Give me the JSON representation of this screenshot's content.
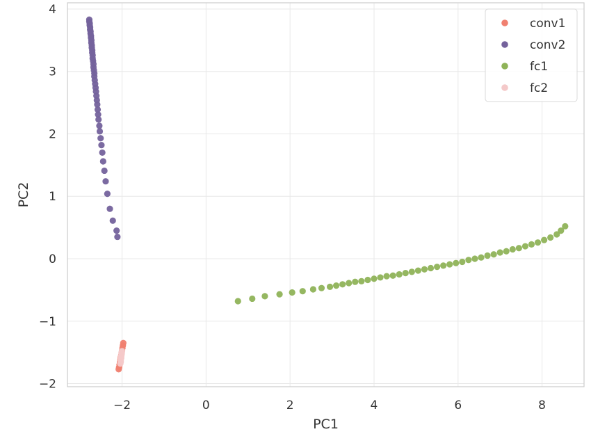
{
  "chart_data": {
    "type": "scatter",
    "xlabel": "PC1",
    "ylabel": "PC2",
    "xlim": [
      -3.3,
      9.0
    ],
    "ylim": [
      -2.05,
      4.1
    ],
    "xticks": [
      -2,
      0,
      2,
      4,
      6,
      8
    ],
    "yticks": [
      -2,
      -1,
      0,
      1,
      2,
      3,
      4
    ],
    "xtick_labels": [
      "−2",
      "0",
      "2",
      "4",
      "6",
      "8"
    ],
    "ytick_labels": [
      "−2",
      "−1",
      "0",
      "1",
      "2",
      "3",
      "4"
    ],
    "grid": true,
    "legend_position": "top-right",
    "series": [
      {
        "name": "conv1",
        "color": "#f08070",
        "points": [
          [
            -2.08,
            -1.77
          ],
          [
            -2.07,
            -1.74
          ],
          [
            -2.06,
            -1.7
          ],
          [
            -2.05,
            -1.66
          ],
          [
            -2.04,
            -1.62
          ],
          [
            -2.03,
            -1.58
          ],
          [
            -2.02,
            -1.55
          ],
          [
            -2.01,
            -1.51
          ],
          [
            -2.0,
            -1.47
          ],
          [
            -1.99,
            -1.43
          ],
          [
            -1.98,
            -1.39
          ],
          [
            -1.97,
            -1.35
          ]
        ]
      },
      {
        "name": "conv2",
        "color": "#74629c",
        "points": [
          [
            -2.78,
            3.83
          ],
          [
            -2.78,
            3.8
          ],
          [
            -2.77,
            3.77
          ],
          [
            -2.77,
            3.74
          ],
          [
            -2.76,
            3.71
          ],
          [
            -2.76,
            3.67
          ],
          [
            -2.75,
            3.64
          ],
          [
            -2.75,
            3.61
          ],
          [
            -2.74,
            3.57
          ],
          [
            -2.74,
            3.54
          ],
          [
            -2.73,
            3.5
          ],
          [
            -2.73,
            3.46
          ],
          [
            -2.72,
            3.42
          ],
          [
            -2.72,
            3.38
          ],
          [
            -2.71,
            3.34
          ],
          [
            -2.71,
            3.3
          ],
          [
            -2.7,
            3.26
          ],
          [
            -2.7,
            3.21
          ],
          [
            -2.69,
            3.17
          ],
          [
            -2.68,
            3.12
          ],
          [
            -2.68,
            3.07
          ],
          [
            -2.67,
            3.02
          ],
          [
            -2.66,
            2.97
          ],
          [
            -2.66,
            2.92
          ],
          [
            -2.65,
            2.86
          ],
          [
            -2.64,
            2.8
          ],
          [
            -2.63,
            2.74
          ],
          [
            -2.62,
            2.68
          ],
          [
            -2.61,
            2.61
          ],
          [
            -2.6,
            2.54
          ],
          [
            -2.59,
            2.47
          ],
          [
            -2.58,
            2.39
          ],
          [
            -2.57,
            2.31
          ],
          [
            -2.56,
            2.23
          ],
          [
            -2.54,
            2.13
          ],
          [
            -2.53,
            2.04
          ],
          [
            -2.51,
            1.93
          ],
          [
            -2.49,
            1.82
          ],
          [
            -2.47,
            1.7
          ],
          [
            -2.45,
            1.56
          ],
          [
            -2.42,
            1.41
          ],
          [
            -2.39,
            1.24
          ],
          [
            -2.35,
            1.04
          ],
          [
            -2.29,
            0.8
          ],
          [
            -2.22,
            0.61
          ],
          [
            -2.13,
            0.45
          ],
          [
            -2.11,
            0.35
          ]
        ]
      },
      {
        "name": "fc1",
        "color": "#8fb358",
        "points": [
          [
            0.76,
            -0.68
          ],
          [
            1.1,
            -0.64
          ],
          [
            1.4,
            -0.6
          ],
          [
            1.75,
            -0.57
          ],
          [
            2.05,
            -0.54
          ],
          [
            2.3,
            -0.52
          ],
          [
            2.55,
            -0.49
          ],
          [
            2.75,
            -0.47
          ],
          [
            2.95,
            -0.45
          ],
          [
            3.1,
            -0.43
          ],
          [
            3.25,
            -0.41
          ],
          [
            3.4,
            -0.39
          ],
          [
            3.55,
            -0.37
          ],
          [
            3.7,
            -0.36
          ],
          [
            3.85,
            -0.34
          ],
          [
            4.0,
            -0.32
          ],
          [
            4.15,
            -0.3
          ],
          [
            4.3,
            -0.28
          ],
          [
            4.45,
            -0.27
          ],
          [
            4.6,
            -0.25
          ],
          [
            4.75,
            -0.23
          ],
          [
            4.9,
            -0.21
          ],
          [
            5.05,
            -0.19
          ],
          [
            5.2,
            -0.17
          ],
          [
            5.35,
            -0.15
          ],
          [
            5.5,
            -0.13
          ],
          [
            5.65,
            -0.11
          ],
          [
            5.8,
            -0.09
          ],
          [
            5.95,
            -0.07
          ],
          [
            6.1,
            -0.05
          ],
          [
            6.25,
            -0.02
          ],
          [
            6.4,
            0.0
          ],
          [
            6.55,
            0.02
          ],
          [
            6.7,
            0.05
          ],
          [
            6.85,
            0.07
          ],
          [
            7.0,
            0.1
          ],
          [
            7.15,
            0.12
          ],
          [
            7.3,
            0.15
          ],
          [
            7.45,
            0.17
          ],
          [
            7.6,
            0.2
          ],
          [
            7.75,
            0.23
          ],
          [
            7.9,
            0.26
          ],
          [
            8.05,
            0.3
          ],
          [
            8.2,
            0.34
          ],
          [
            8.35,
            0.39
          ],
          [
            8.45,
            0.45
          ],
          [
            8.55,
            0.52
          ]
        ]
      },
      {
        "name": "fc2",
        "color": "#f4c9c9",
        "points": [
          [
            -2.04,
            -1.68
          ],
          [
            -2.03,
            -1.65
          ],
          [
            -2.03,
            -1.62
          ],
          [
            -2.02,
            -1.59
          ],
          [
            -2.02,
            -1.56
          ],
          [
            -2.01,
            -1.53
          ],
          [
            -2.01,
            -1.5
          ],
          [
            -2.0,
            -1.48
          ]
        ]
      }
    ]
  }
}
